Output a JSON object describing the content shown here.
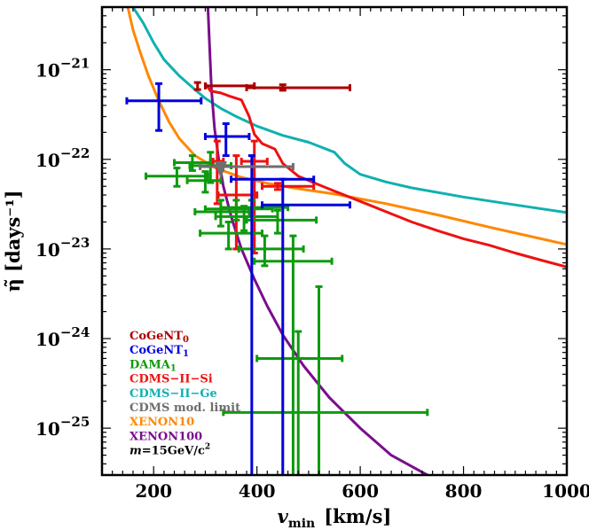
{
  "chart_data": {
    "type": "scatter",
    "xlabel": "v_min  [km/s]",
    "xlabel_main": "v",
    "xlabel_sub": "min",
    "xlabel_unit": "[km/s]",
    "ylabel": "η̃ [days⁻¹]",
    "xlim": [
      100,
      1000
    ],
    "ylim": [
      3e-26,
      5e-21
    ],
    "yscale": "log",
    "grid": false,
    "legend_position": "bottom-left",
    "x_ticks": [
      {
        "value": 200,
        "label": "200"
      },
      {
        "value": 400,
        "label": "400"
      },
      {
        "value": 600,
        "label": "600"
      },
      {
        "value": 800,
        "label": "800"
      },
      {
        "value": 1000,
        "label": "1000"
      }
    ],
    "y_ticks": [
      {
        "exp": -21,
        "base": "10",
        "sup": "−21"
      },
      {
        "exp": -22,
        "base": "10",
        "sup": "−22"
      },
      {
        "exp": -23,
        "base": "10",
        "sup": "−23"
      },
      {
        "exp": -24,
        "base": "10",
        "sup": "−24"
      },
      {
        "exp": -25,
        "base": "10",
        "sup": "−25"
      }
    ],
    "mass_label": {
      "prefix": "m",
      "text": "=15GeV/c",
      "sup": "2"
    },
    "series": [
      {
        "name": "CoGeNT0",
        "label_main": "CoGeNT",
        "label_sub": "0",
        "color": "#aa0000",
        "kind": "errorbars",
        "points": [
          {
            "x": 285,
            "xerr": [
              300,
              395
            ],
            "y": 6.6e-22,
            "yerr": [
              6e-22,
              7.2e-22
            ]
          },
          {
            "x": 450,
            "xerr": [
              380,
              580
            ],
            "y": 6.3e-22,
            "yerr": [
              5.9e-22,
              6.8e-22
            ]
          }
        ]
      },
      {
        "name": "CoGeNT1",
        "label_main": "CoGeNT",
        "label_sub": "1",
        "color": "#0000dd",
        "kind": "errorbars",
        "points": [
          {
            "x": 210,
            "xerr": [
              148,
              292
            ],
            "y": 4.5e-22,
            "yerr": [
              2.1e-22,
              7e-22
            ]
          },
          {
            "x": 340,
            "xerr": [
              300,
              385
            ],
            "y": 1.8e-22,
            "yerr": [
              1.1e-22,
              2.5e-22
            ]
          },
          {
            "x": 390,
            "xerr": [
              350,
              510
            ],
            "y": 6e-23,
            "yerr": [
              3e-26,
              1.1e-22
            ]
          },
          {
            "x": 450,
            "xerr": [
              410,
              580
            ],
            "y": 3.1e-23,
            "yerr": [
              3e-26,
              6e-23
            ]
          }
        ]
      },
      {
        "name": "DAMA1",
        "label_main": "DAMA",
        "label_sub": "1",
        "color": "#0e9a0e",
        "kind": "errorbars",
        "points": [
          {
            "x": 245,
            "xerr": [
              185,
              305
            ],
            "y": 6.5e-23,
            "yerr": [
              5e-23,
              8e-23
            ]
          },
          {
            "x": 275,
            "xerr": [
              240,
              310
            ],
            "y": 9.2e-23,
            "yerr": [
              7.5e-23,
              1.1e-22
            ]
          },
          {
            "x": 300,
            "xerr": [
              265,
              330
            ],
            "y": 5.8e-23,
            "yerr": [
              4.3e-23,
              7.3e-23
            ]
          },
          {
            "x": 310,
            "xerr": [
              270,
              350
            ],
            "y": 8.5e-23,
            "yerr": [
              5.5e-23,
              1.2e-22
            ]
          },
          {
            "x": 330,
            "xerr": [
              280,
              385
            ],
            "y": 2.6e-23,
            "yerr": [
              1.8e-23,
              3.5e-23
            ]
          },
          {
            "x": 345,
            "xerr": [
              290,
              410
            ],
            "y": 1.5e-23,
            "yerr": [
              1e-23,
              2e-23
            ]
          },
          {
            "x": 360,
            "xerr": [
              300,
              430
            ],
            "y": 2.8e-23,
            "yerr": [
              2.1e-23,
              3.5e-23
            ]
          },
          {
            "x": 375,
            "xerr": [
              320,
              440
            ],
            "y": 2.3e-23,
            "yerr": [
              1.6e-23,
              3e-23
            ]
          },
          {
            "x": 390,
            "xerr": [
              330,
              460
            ],
            "y": 2.9e-23,
            "yerr": [
              2.3e-23,
              3.5e-23
            ]
          },
          {
            "x": 415,
            "xerr": [
              365,
              490
            ],
            "y": 1e-23,
            "yerr": [
              6.5e-24,
              1.4e-23
            ]
          },
          {
            "x": 440,
            "xerr": [
              380,
              515
            ],
            "y": 2.1e-23,
            "yerr": [
              1.5e-23,
              2.7e-23
            ]
          },
          {
            "x": 470,
            "xerr": [
              395,
              545
            ],
            "y": 7.3e-24,
            "yerr": [
              3e-26,
              1.4e-23
            ]
          },
          {
            "x": 480,
            "xerr": [
              400,
              565
            ],
            "y": 6e-25,
            "yerr": [
              3e-26,
              1.2e-24
            ]
          },
          {
            "x": 520,
            "xerr": [
              335,
              730
            ],
            "y": 1.5e-25,
            "yerr": [
              3e-26,
              3.8e-24
            ]
          }
        ]
      },
      {
        "name": "CDMS-II-Si",
        "label": "CDMS−II−Si",
        "color": "#ee1111",
        "kind": "errorbars+line",
        "points": [
          {
            "x": 323,
            "xerr": [
              315,
              335
            ],
            "y": 9.5e-23,
            "yerr": [
              3.2e-23,
              1.6e-22
            ]
          },
          {
            "x": 360,
            "xerr": [
              325,
              400
            ],
            "y": 4e-23,
            "yerr": [
              1e-23,
              1.1e-22
            ]
          },
          {
            "x": 395,
            "xerr": [
              370,
              420
            ],
            "y": 9.5e-23,
            "yerr": [
              9e-24,
              1.6e-22
            ]
          },
          {
            "x": 440,
            "xerr": [
              410,
              510
            ],
            "y": 5e-23,
            "yerr": [
              4.6e-23,
              5.4e-23
            ]
          }
        ],
        "line": [
          [
            300,
            7e-22
          ],
          [
            310,
            5.8e-22
          ],
          [
            330,
            5.5e-22
          ],
          [
            350,
            5e-22
          ],
          [
            370,
            4.6e-22
          ],
          [
            385,
            3e-22
          ],
          [
            395,
            1.9e-22
          ],
          [
            410,
            1.5e-22
          ],
          [
            435,
            1.3e-22
          ],
          [
            450,
            9e-23
          ],
          [
            480,
            6.5e-23
          ],
          [
            520,
            5.2e-23
          ],
          [
            560,
            4.2e-23
          ],
          [
            600,
            3.4e-23
          ],
          [
            650,
            2.6e-23
          ],
          [
            700,
            2e-23
          ],
          [
            750,
            1.6e-23
          ],
          [
            800,
            1.3e-23
          ],
          [
            850,
            1.1e-23
          ],
          [
            900,
            9e-24
          ],
          [
            950,
            7.5e-24
          ],
          [
            1000,
            6.3e-24
          ]
        ]
      },
      {
        "name": "CDMS-II-Ge",
        "label": "CDMS−II−Ge",
        "color": "#11b0b0",
        "kind": "line",
        "line": [
          [
            160,
            5e-21
          ],
          [
            180,
            3.3e-21
          ],
          [
            200,
            2e-21
          ],
          [
            220,
            1.3e-21
          ],
          [
            250,
            8.5e-22
          ],
          [
            280,
            6e-22
          ],
          [
            300,
            4.8e-22
          ],
          [
            330,
            3.7e-22
          ],
          [
            360,
            3e-22
          ],
          [
            400,
            2.35e-22
          ],
          [
            450,
            1.85e-22
          ],
          [
            500,
            1.55e-22
          ],
          [
            550,
            1.2e-22
          ],
          [
            570,
            9e-23
          ],
          [
            600,
            6.8e-23
          ],
          [
            650,
            5.6e-23
          ],
          [
            700,
            4.8e-23
          ],
          [
            800,
            3.8e-23
          ],
          [
            900,
            3.1e-23
          ],
          [
            1000,
            2.55e-23
          ]
        ]
      },
      {
        "name": "CDMS mod. limit",
        "label": "CDMS mod. limit",
        "color": "#6e6e6e",
        "kind": "errorbars",
        "points": [
          {
            "x": 330,
            "xerr": [
              290,
              470
            ],
            "y": 8.3e-23,
            "yerr": [
              7.6e-23,
              9e-23
            ]
          }
        ]
      },
      {
        "name": "XENON10",
        "label": "XENON10",
        "color": "#ff8800",
        "kind": "line",
        "line": [
          [
            150,
            5e-21
          ],
          [
            160,
            2.8e-21
          ],
          [
            175,
            1.5e-21
          ],
          [
            190,
            8.5e-22
          ],
          [
            210,
            4.5e-22
          ],
          [
            230,
            2.6e-22
          ],
          [
            250,
            1.7e-22
          ],
          [
            280,
            1.1e-22
          ],
          [
            320,
            8e-23
          ],
          [
            370,
            6.3e-23
          ],
          [
            420,
            5.4e-23
          ],
          [
            480,
            4.7e-23
          ],
          [
            550,
            4.1e-23
          ],
          [
            650,
            3.2e-23
          ],
          [
            750,
            2.4e-23
          ],
          [
            850,
            1.75e-23
          ],
          [
            950,
            1.3e-23
          ],
          [
            1000,
            1.12e-23
          ]
        ]
      },
      {
        "name": "XENON100",
        "label": "XENON100",
        "color": "#7b0d8e",
        "kind": "line",
        "line": [
          [
            305,
            5e-21
          ],
          [
            308,
            2e-21
          ],
          [
            312,
            6e-22
          ],
          [
            318,
            2.2e-22
          ],
          [
            326,
            1e-22
          ],
          [
            335,
            5e-23
          ],
          [
            350,
            2.3e-23
          ],
          [
            370,
            1e-23
          ],
          [
            395,
            4.6e-24
          ],
          [
            420,
            2.3e-24
          ],
          [
            450,
            1.1e-24
          ],
          [
            490,
            5e-25
          ],
          [
            540,
            2.2e-25
          ],
          [
            600,
            1e-25
          ],
          [
            660,
            5e-26
          ],
          [
            730,
            3e-26
          ]
        ]
      }
    ]
  }
}
